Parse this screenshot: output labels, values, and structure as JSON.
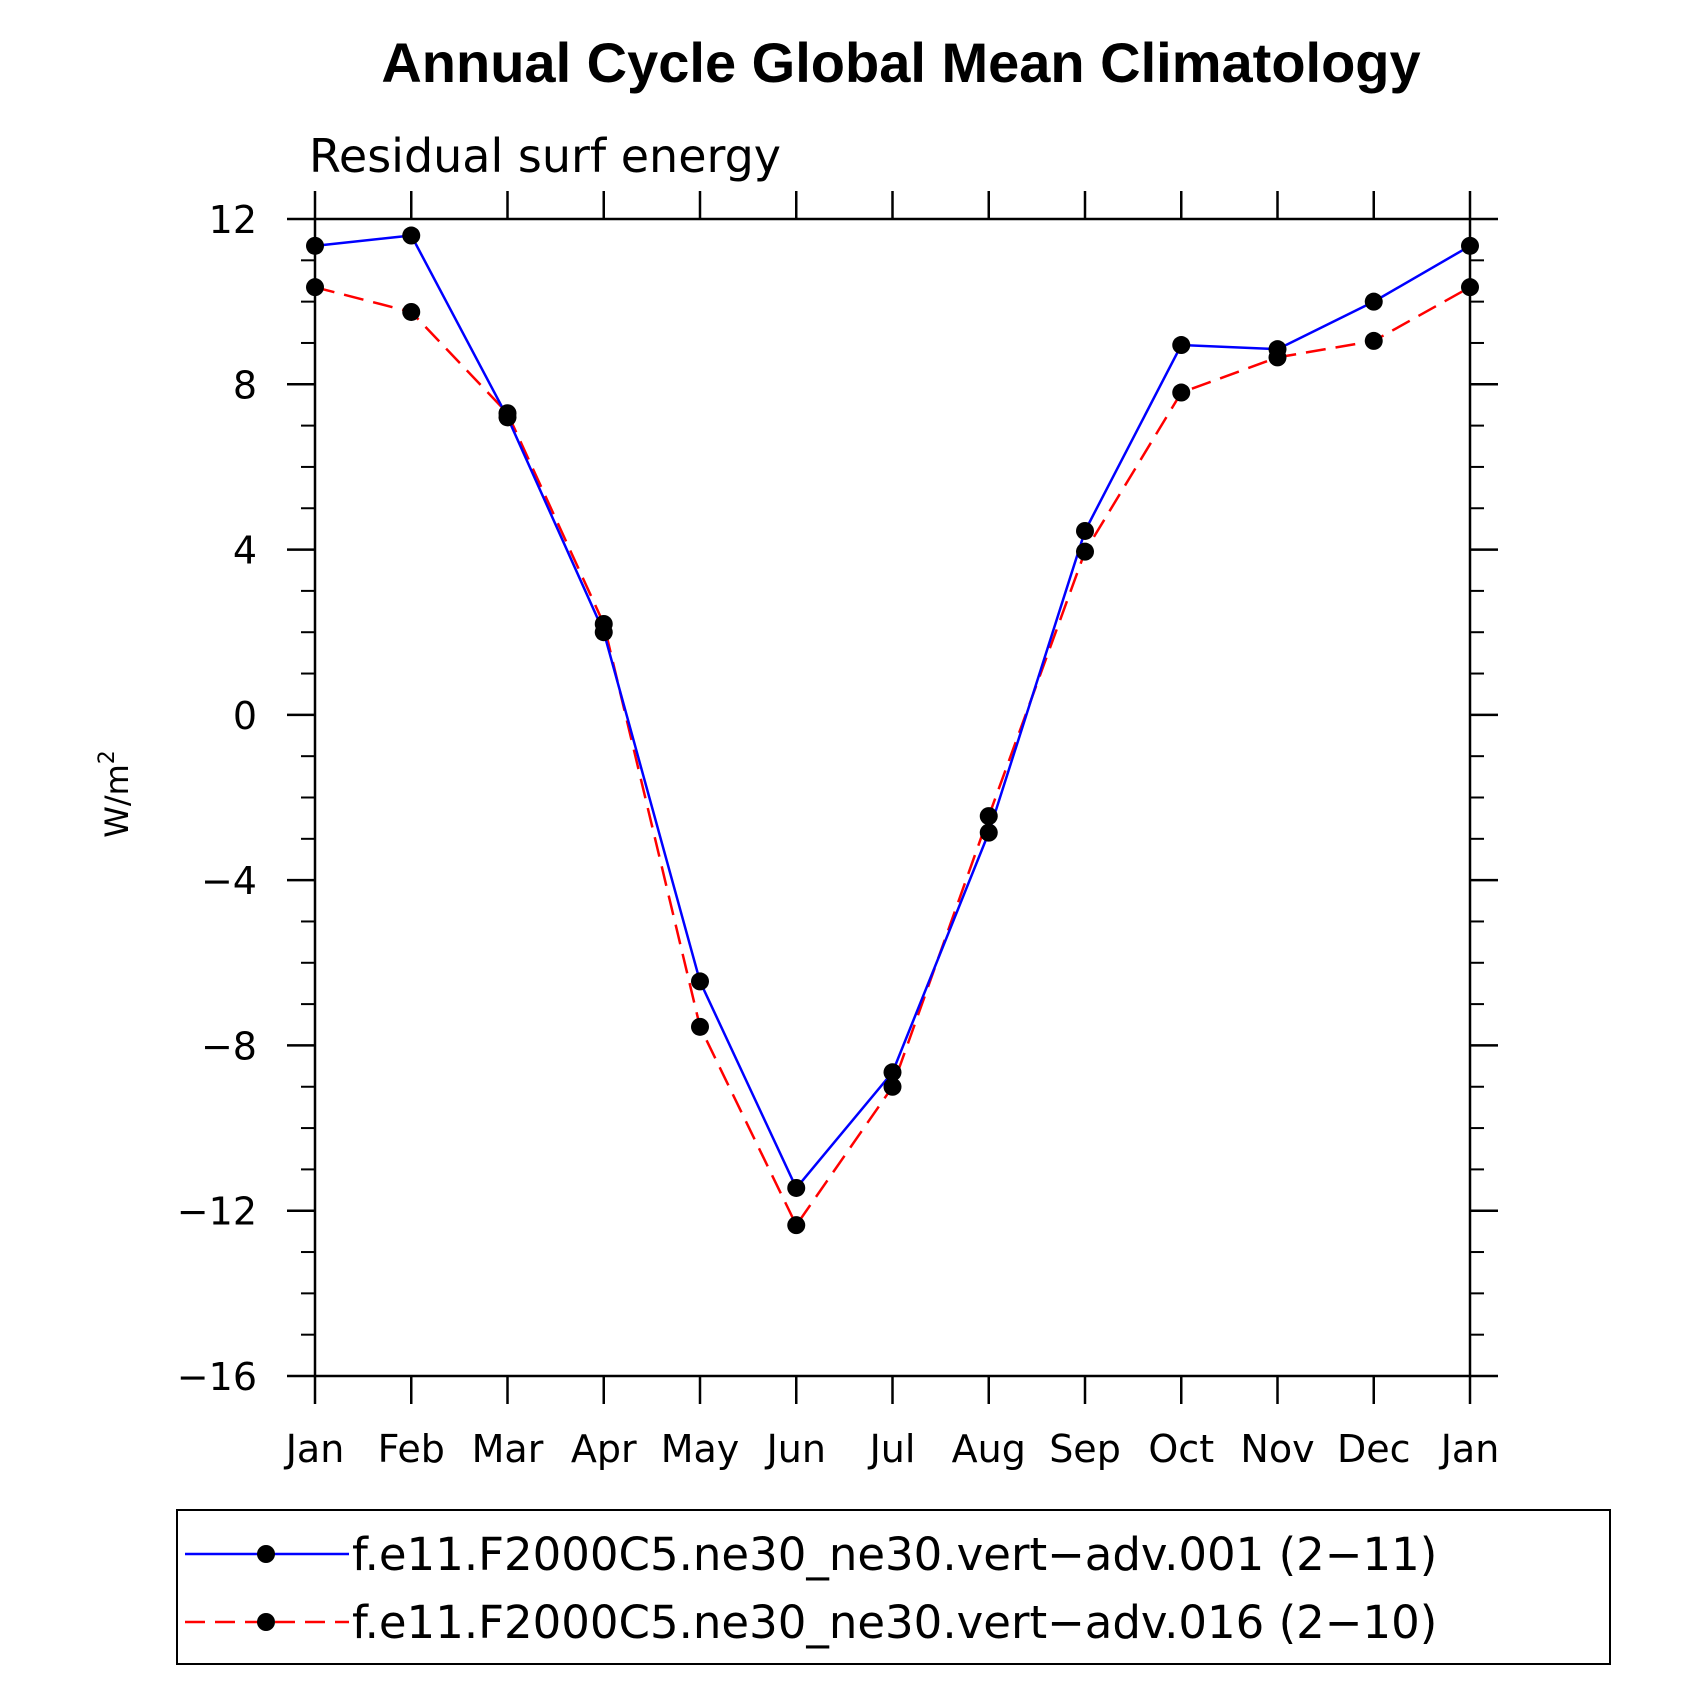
{
  "chart_data": {
    "type": "line",
    "title": "Annual Cycle Global Mean Climatology",
    "subtitle": "Residual surf energy",
    "xlabel": "",
    "ylabel": "W/m",
    "ylabel_superscript": "2",
    "categories": [
      "Jan",
      "Feb",
      "Mar",
      "Apr",
      "May",
      "Jun",
      "Jul",
      "Aug",
      "Sep",
      "Oct",
      "Nov",
      "Dec",
      "Jan"
    ],
    "ylim": [
      -16,
      12
    ],
    "y_ticks": [
      12,
      8,
      4,
      0,
      -4,
      -8,
      -12,
      -16
    ],
    "y_tick_labels": [
      "12",
      "8",
      "4",
      "0",
      "−4",
      "−8",
      "−12",
      "−16"
    ],
    "grid": false,
    "legend_position": "bottom",
    "series": [
      {
        "name": "f.e11.F2000C5.ne30_ne30.vert−adv.001 (2−11)",
        "color": "#0000ff",
        "line_style": "solid",
        "marker": "filled-circle",
        "marker_color": "#000000",
        "values": [
          11.35,
          11.6,
          7.2,
          2.0,
          -6.45,
          -11.45,
          -8.65,
          -2.85,
          4.45,
          8.95,
          8.85,
          10.0,
          11.35
        ]
      },
      {
        "name": "f.e11.F2000C5.ne30_ne30.vert−adv.016 (2−10)",
        "color": "#ff0000",
        "line_style": "dashed",
        "marker": "filled-circle",
        "marker_color": "#000000",
        "values": [
          10.35,
          9.75,
          7.3,
          2.2,
          -7.55,
          -12.35,
          -9.0,
          -2.45,
          3.95,
          7.8,
          8.65,
          9.05,
          10.35
        ]
      }
    ]
  }
}
